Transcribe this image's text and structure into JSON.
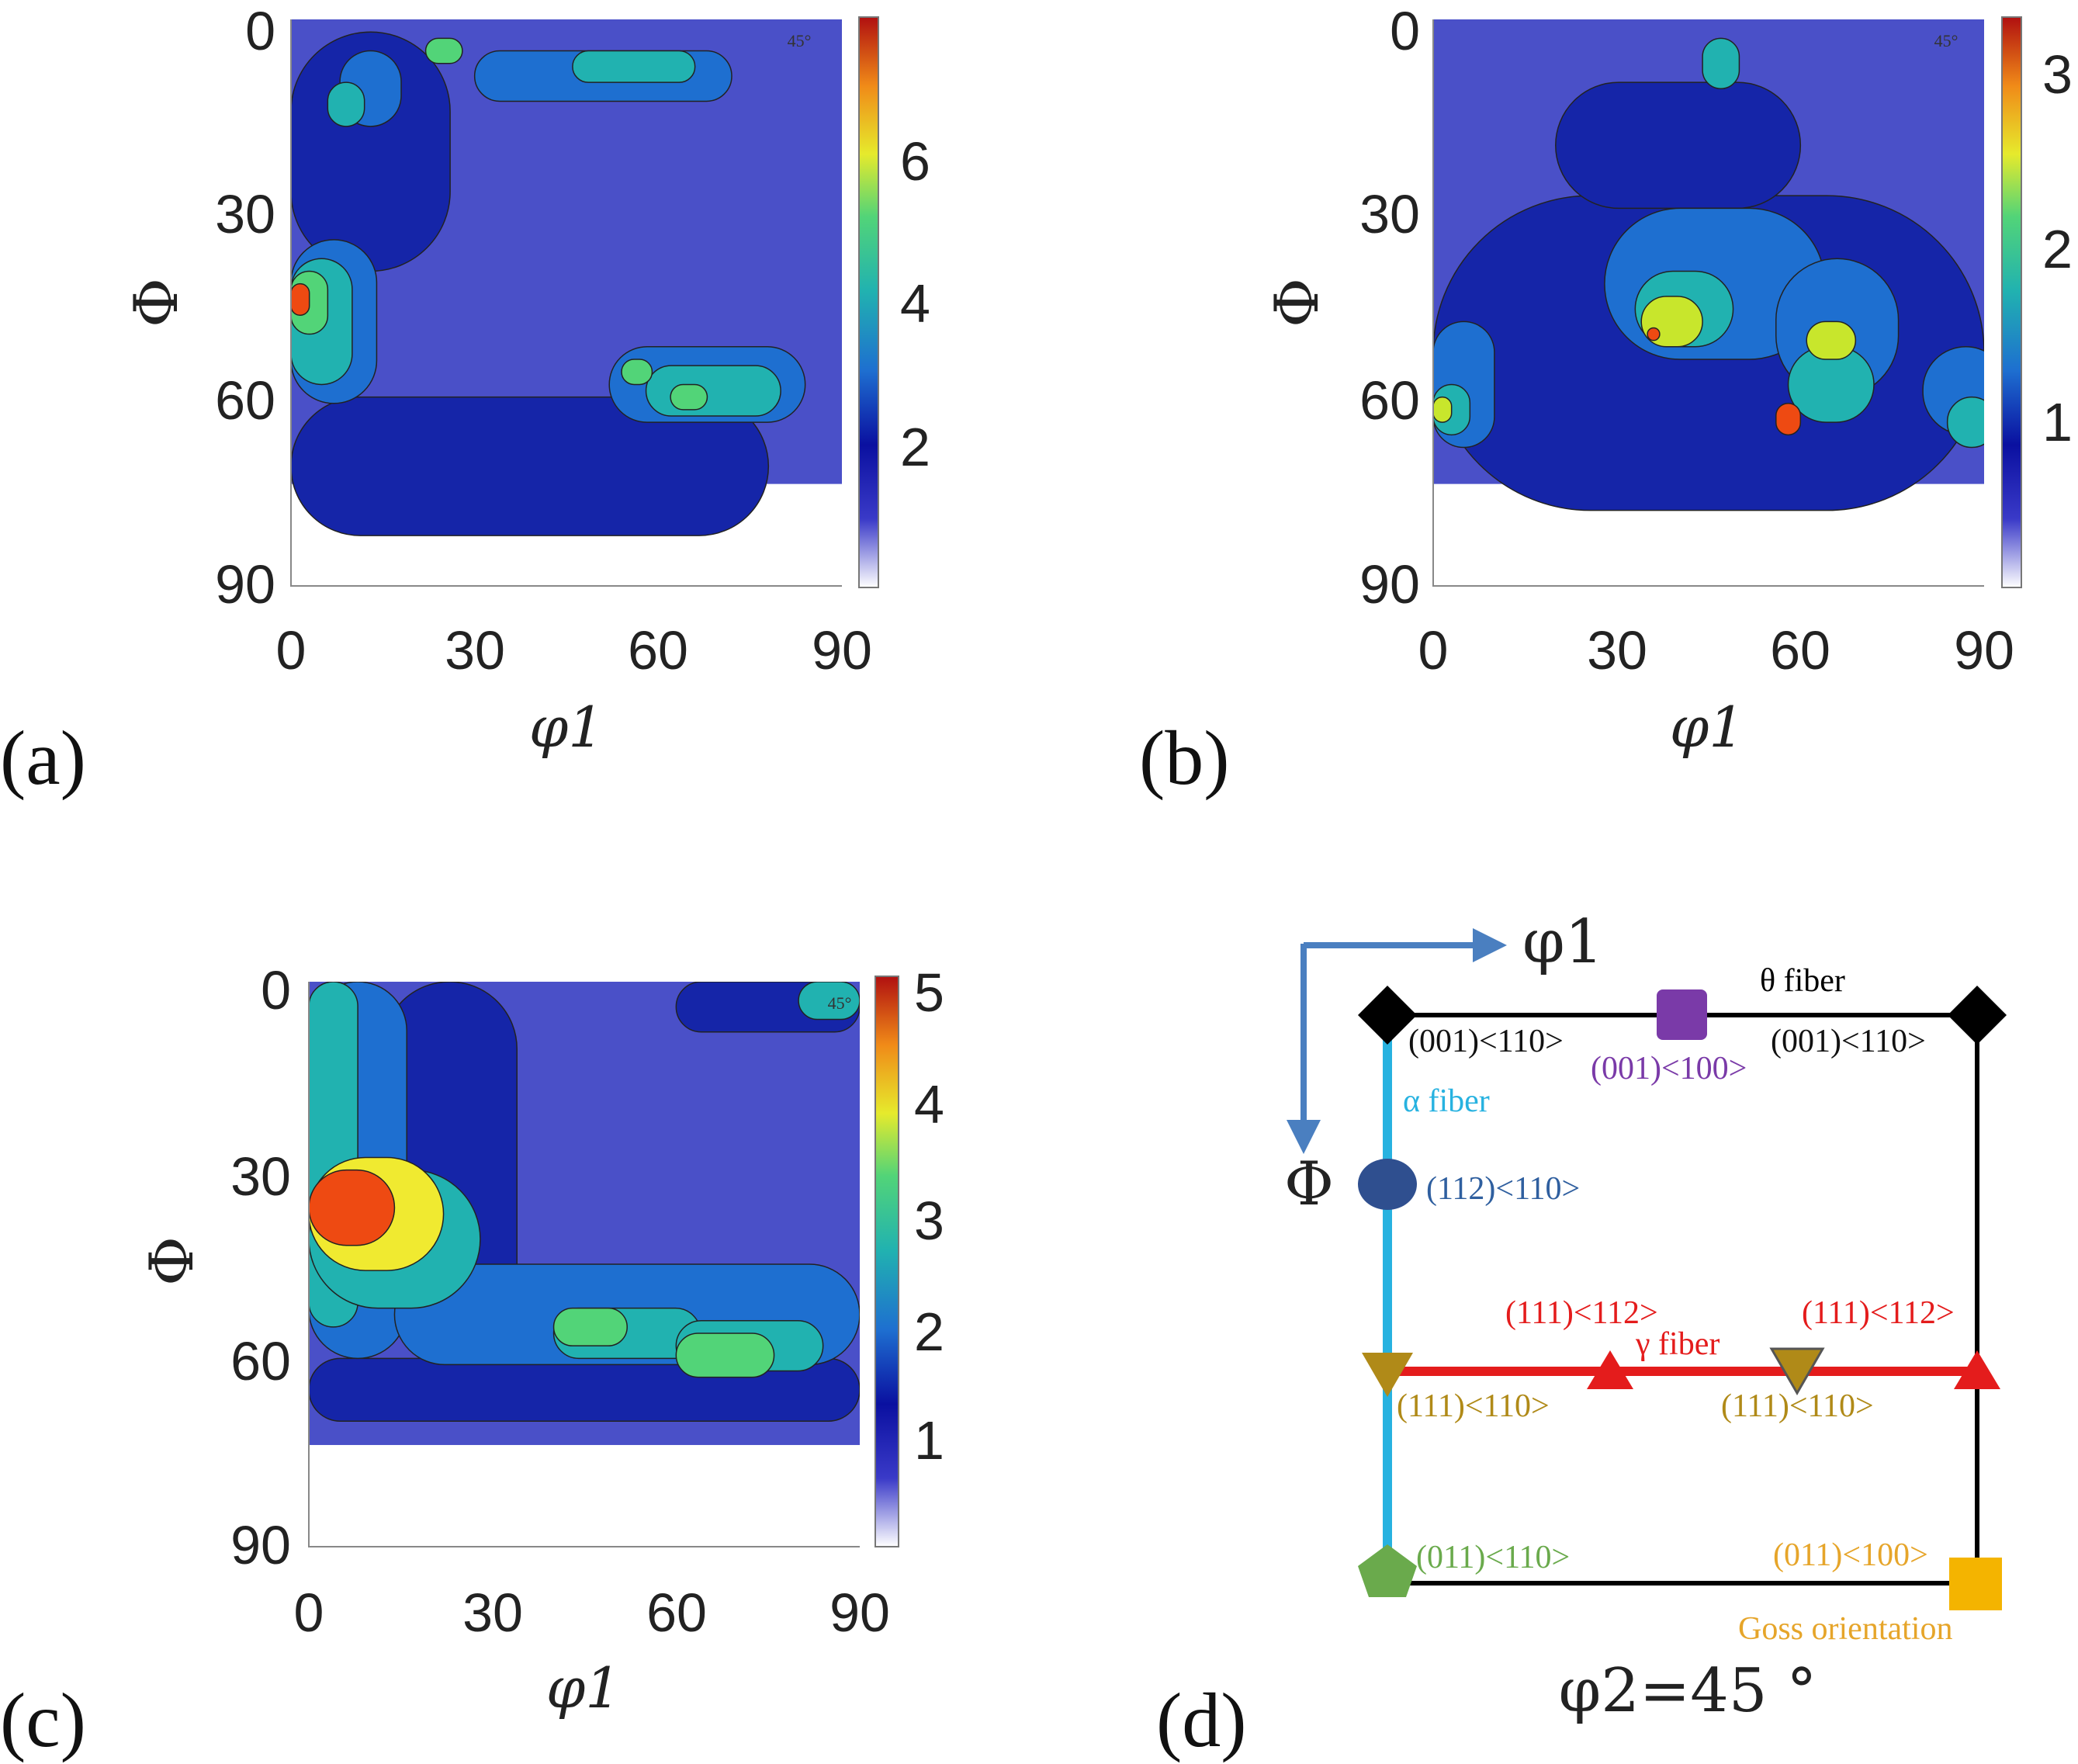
{
  "chart_data": [
    {
      "panel": "(a)",
      "type": "heatmap",
      "subtype": "ODF section contour",
      "xlabel": "φ1",
      "ylabel": "Φ",
      "corner_label": "45°",
      "xticks": [
        "0",
        "30",
        "60",
        "90"
      ],
      "yticks": [
        "0",
        "30",
        "60",
        "90"
      ],
      "xlim": [
        0,
        90
      ],
      "ylim": [
        0,
        90
      ],
      "colorbar": {
        "ticks": [
          "2",
          "4",
          "6"
        ],
        "range": [
          0,
          8
        ],
        "tick_values": [
          2,
          4,
          6
        ]
      },
      "levels": [
        {
          "level": 1,
          "color": "#4a50c8",
          "blobs": []
        },
        {
          "level": 2,
          "color": "#1525a8",
          "blobs": [
            [
              0,
              2,
              26,
              38
            ],
            [
              0,
              60,
              78,
              22
            ]
          ]
        },
        {
          "level": 3,
          "color": "#1e6fd0",
          "blobs": [
            [
              0,
              35,
              14,
              26
            ],
            [
              8,
              5,
              10,
              12
            ],
            [
              30,
              5,
              42,
              8
            ],
            [
              52,
              52,
              32,
              12
            ]
          ]
        },
        {
          "level": 4,
          "color": "#21b2b0",
          "blobs": [
            [
              0,
              38,
              10,
              20
            ],
            [
              6,
              10,
              6,
              7
            ],
            [
              58,
              55,
              22,
              8
            ],
            [
              46,
              5,
              20,
              5
            ]
          ]
        },
        {
          "level": 5,
          "color": "#52d478",
          "blobs": [
            [
              0,
              40,
              6,
              10
            ],
            [
              62,
              58,
              6,
              4
            ],
            [
              54,
              54,
              5,
              4
            ],
            [
              22,
              3,
              6,
              4
            ]
          ]
        },
        {
          "level": 7,
          "color": "#ee4a12",
          "blobs": [
            [
              0,
              42,
              3,
              5
            ]
          ]
        }
      ]
    },
    {
      "panel": "(b)",
      "type": "heatmap",
      "subtype": "ODF section contour",
      "xlabel": "φ1",
      "ylabel": "Φ",
      "corner_label": "45°",
      "xticks": [
        "0",
        "30",
        "60",
        "90"
      ],
      "yticks": [
        "0",
        "30",
        "60",
        "90"
      ],
      "xlim": [
        0,
        90
      ],
      "ylim": [
        0,
        90
      ],
      "colorbar": {
        "ticks": [
          "1",
          "2",
          "3"
        ],
        "range": [
          0,
          3.4
        ],
        "tick_values": [
          1,
          2,
          3
        ]
      },
      "levels": [
        {
          "level": 1,
          "color": "#4a50c8",
          "blobs": []
        },
        {
          "level": 1.5,
          "color": "#1525a8",
          "blobs": [
            [
              0,
              28,
              90,
              50
            ],
            [
              20,
              10,
              40,
              20
            ]
          ]
        },
        {
          "level": 2,
          "color": "#1e6fd0",
          "blobs": [
            [
              28,
              30,
              36,
              24
            ],
            [
              0,
              48,
              10,
              20
            ],
            [
              56,
              38,
              20,
              22
            ],
            [
              80,
              52,
              14,
              14
            ]
          ]
        },
        {
          "level": 2.5,
          "color": "#21b2b0",
          "blobs": [
            [
              33,
              40,
              16,
              12
            ],
            [
              0,
              58,
              6,
              8
            ],
            [
              58,
              52,
              14,
              12
            ],
            [
              84,
              60,
              8,
              8
            ],
            [
              44,
              3,
              6,
              8
            ]
          ]
        },
        {
          "level": 3,
          "color": "#c8e62c",
          "blobs": [
            [
              34,
              44,
              10,
              8
            ],
            [
              61,
              48,
              8,
              6
            ],
            [
              0,
              60,
              3,
              4
            ]
          ]
        },
        {
          "level": 3.3,
          "color": "#ee4a12",
          "blobs": [
            [
              56,
              61,
              4,
              5
            ],
            [
              35,
              49,
              2,
              2
            ]
          ]
        }
      ]
    },
    {
      "panel": "(c)",
      "type": "heatmap",
      "subtype": "ODF section contour",
      "xlabel": "φ1",
      "ylabel": "Φ",
      "corner_label": "45°",
      "xticks": [
        "0",
        "30",
        "60",
        "90"
      ],
      "yticks": [
        "0",
        "30",
        "60",
        "90"
      ],
      "xlim": [
        0,
        90
      ],
      "ylim": [
        0,
        90
      ],
      "colorbar": {
        "ticks": [
          "1",
          "2",
          "3",
          "4",
          "5"
        ],
        "range": [
          0,
          5.2
        ],
        "tick_values": [
          1,
          2,
          3,
          4,
          5
        ]
      },
      "levels": [
        {
          "level": 1,
          "color": "#4a50c8",
          "blobs": []
        },
        {
          "level": 1.5,
          "color": "#1525a8",
          "blobs": [
            [
              12,
              0,
              22,
              60
            ],
            [
              0,
              60,
              90,
              10
            ],
            [
              60,
              0,
              30,
              8
            ]
          ]
        },
        {
          "level": 2,
          "color": "#1e6fd0",
          "blobs": [
            [
              0,
              0,
              16,
              60
            ],
            [
              14,
              45,
              76,
              16
            ]
          ]
        },
        {
          "level": 2.5,
          "color": "#21b2b0",
          "blobs": [
            [
              0,
              0,
              8,
              55
            ],
            [
              0,
              30,
              28,
              22
            ],
            [
              40,
              52,
              24,
              8
            ],
            [
              60,
              54,
              24,
              8
            ],
            [
              80,
              0,
              10,
              6
            ]
          ]
        },
        {
          "level": 3.5,
          "color": "#52d478",
          "blobs": [
            [
              40,
              52,
              12,
              6
            ],
            [
              60,
              56,
              16,
              7
            ]
          ]
        },
        {
          "level": 4,
          "color": "#f0ea30",
          "blobs": [
            [
              0,
              28,
              22,
              18
            ]
          ]
        },
        {
          "level": 5,
          "color": "#ee4a12",
          "blobs": [
            [
              0,
              30,
              14,
              12
            ]
          ]
        }
      ]
    }
  ],
  "schematic": {
    "panel": "(d)",
    "axis_phi1": "φ1",
    "axis_Phi": "Φ",
    "theta_fiber": "θ fiber",
    "alpha_fiber": "α fiber",
    "gamma_fiber": "γ fiber",
    "labels": {
      "top_left": "(001)<110>",
      "top_mid": "(001)<100>",
      "top_right": "(001)<110>",
      "alpha_mid": "(112)<110>",
      "gamma_l1": "(111)<110>",
      "gamma_l2": "(111)<112>",
      "gamma_l3": "(111)<112>",
      "gamma_l4": "(111)<110>",
      "bottom_left": "(011)<110>",
      "bottom_right": "(011)<100>",
      "goss": "Goss orientation"
    },
    "caption": "φ2=45 °",
    "colors": {
      "black": "#000000",
      "purple": "#7a3aa8",
      "axis_blue": "#4a7fc0",
      "alpha": "#27b2e0",
      "gamma": "#e41c1c",
      "navy": "#2f4f8f",
      "gold": "#b08a18",
      "green": "#6aaa4c",
      "orange": "#f4b400",
      "goss_text": "#e6a52a"
    }
  }
}
